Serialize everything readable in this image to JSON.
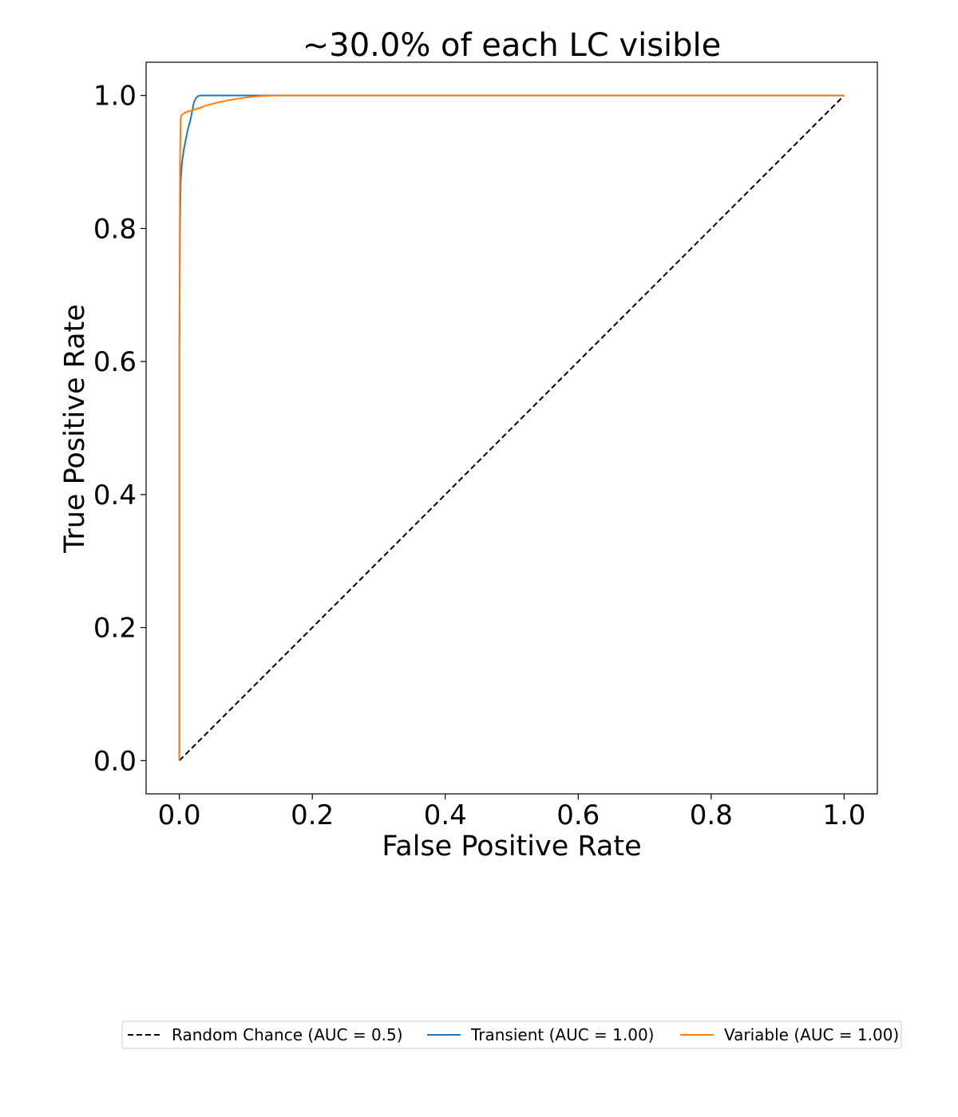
{
  "chart_data": {
    "type": "line",
    "title": "~30.0% of each LC visible",
    "xlabel": "False Positive Rate",
    "ylabel": "True Positive Rate",
    "xlim": [
      -0.05,
      1.05
    ],
    "ylim": [
      -0.05,
      1.05
    ],
    "x_ticks": [
      "0.0",
      "0.2",
      "0.4",
      "0.6",
      "0.8",
      "1.0"
    ],
    "y_ticks": [
      "0.0",
      "0.2",
      "0.4",
      "0.6",
      "0.8",
      "1.0"
    ],
    "grid": false,
    "legend_position": "bottom-center, below plot, 3 columns",
    "series": [
      {
        "name": "Random Chance (AUC = 0.5)",
        "color": "#000000",
        "style": "dashed",
        "x": [
          0.0,
          1.0
        ],
        "y": [
          0.0,
          1.0
        ]
      },
      {
        "name": "Transient (AUC = 1.00)",
        "color": "#1f77b4",
        "style": "solid",
        "x": [
          0.0,
          0.0,
          0.001,
          0.002,
          0.004,
          0.007,
          0.01,
          0.013,
          0.016,
          0.019,
          0.022,
          0.025,
          0.028,
          0.032,
          0.04,
          0.06,
          0.1,
          0.15,
          1.0
        ],
        "y": [
          0.0,
          0.6,
          0.8,
          0.87,
          0.9,
          0.92,
          0.935,
          0.95,
          0.96,
          0.975,
          0.99,
          0.996,
          0.999,
          1.0,
          1.0,
          1.0,
          1.0,
          1.0,
          1.0
        ]
      },
      {
        "name": "Variable (AUC = 1.00)",
        "color": "#ff7f0e",
        "style": "solid",
        "x": [
          0.0,
          0.0,
          0.001,
          0.002,
          0.003,
          0.005,
          0.01,
          0.02,
          0.03,
          0.04,
          0.06,
          0.08,
          0.1,
          0.12,
          0.15,
          1.0
        ],
        "y": [
          0.0,
          0.62,
          0.9,
          0.965,
          0.97,
          0.972,
          0.975,
          0.978,
          0.981,
          0.985,
          0.99,
          0.994,
          0.997,
          0.999,
          1.0,
          1.0
        ]
      }
    ]
  }
}
